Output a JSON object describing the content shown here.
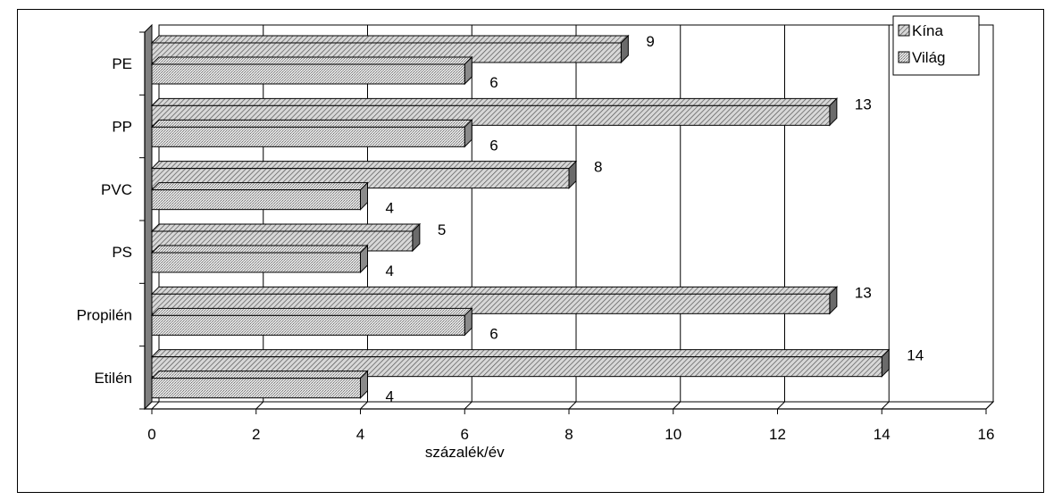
{
  "chart_data": {
    "type": "bar",
    "orientation": "horizontal",
    "categories": [
      "PE",
      "PP",
      "PVC",
      "PS",
      "Propilén",
      "Etilén"
    ],
    "series": [
      {
        "name": "Kína",
        "values": [
          9,
          13,
          8,
          5,
          13,
          14
        ]
      },
      {
        "name": "Világ",
        "values": [
          6,
          6,
          4,
          4,
          6,
          4
        ]
      }
    ],
    "xlabel": "százalék/év",
    "ylabel": "",
    "xlim": [
      0,
      16
    ],
    "xticks": [
      0,
      2,
      4,
      6,
      8,
      10,
      12,
      14,
      16
    ],
    "grid": "vertical",
    "legend_position": "top-right",
    "style": "3d-hatched"
  }
}
